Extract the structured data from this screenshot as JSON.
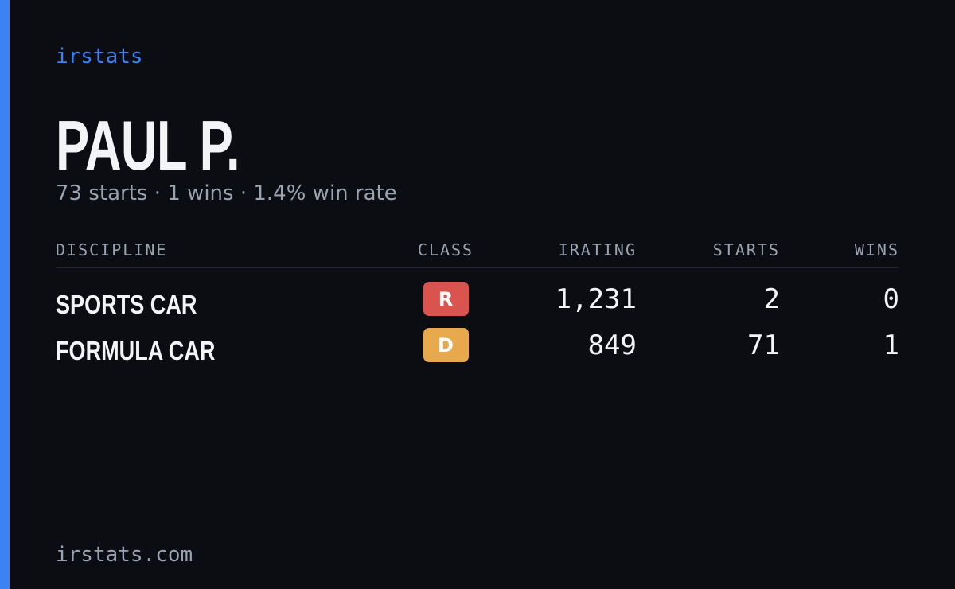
{
  "brand": "irstats",
  "driver": {
    "name": "PAUL P.",
    "summary": "73 starts · 1 wins · 1.4% win rate"
  },
  "table": {
    "headers": [
      "DISCIPLINE",
      "CLASS",
      "IRATING",
      "STARTS",
      "WINS"
    ],
    "rows": [
      [
        "SPORTS CAR",
        "R",
        "1,231",
        "2",
        "0"
      ],
      [
        "FORMULA CAR",
        "D",
        "849",
        "71",
        "1"
      ]
    ]
  },
  "footer": "irstats.com"
}
